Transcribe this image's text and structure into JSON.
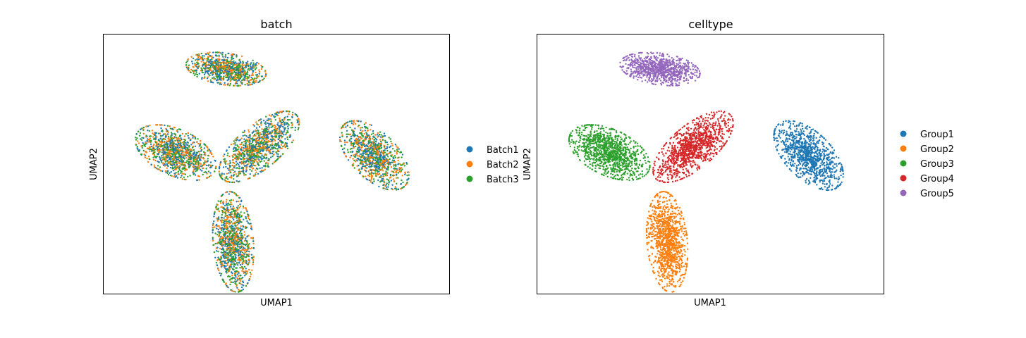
{
  "chart_data": [
    {
      "type": "scatter",
      "title": "batch",
      "xlabel": "UMAP1",
      "ylabel": "UMAP2",
      "ticks": "none",
      "legend_placement": "right",
      "series": [
        {
          "name": "Batch1",
          "color": "#1f77b4"
        },
        {
          "name": "Batch2",
          "color": "#ff7f0e"
        },
        {
          "name": "Batch3",
          "color": "#2ca02c"
        }
      ],
      "clusters": [
        {
          "center": [
            -3.5,
            9.6
          ],
          "radius": [
            2.8,
            1.1
          ],
          "rotation_deg": -8,
          "points": 900,
          "mix": [
            0.34,
            0.33,
            0.33
          ]
        },
        {
          "center": [
            -7.0,
            3.8
          ],
          "radius": [
            3.0,
            1.6
          ],
          "rotation_deg": -25,
          "points": 1100,
          "mix": [
            0.33,
            0.34,
            0.33
          ]
        },
        {
          "center": [
            -1.2,
            4.2
          ],
          "radius": [
            3.4,
            1.5
          ],
          "rotation_deg": 40,
          "points": 1100,
          "mix": [
            0.34,
            0.33,
            0.33
          ]
        },
        {
          "center": [
            6.8,
            3.6
          ],
          "radius": [
            3.0,
            1.6
          ],
          "rotation_deg": -45,
          "points": 1000,
          "mix": [
            0.34,
            0.33,
            0.33
          ]
        },
        {
          "center": [
            -3.0,
            -2.4
          ],
          "radius": [
            3.5,
            1.4
          ],
          "rotation_deg": 95,
          "points": 1100,
          "mix": [
            0.33,
            0.33,
            0.34
          ]
        }
      ],
      "xlim": [
        -12,
        12
      ],
      "ylim": [
        -6,
        12
      ]
    },
    {
      "type": "scatter",
      "title": "celltype",
      "xlabel": "UMAP1",
      "ylabel": "UMAP2",
      "ticks": "none",
      "legend_placement": "right",
      "series": [
        {
          "name": "Group1",
          "color": "#1f77b4"
        },
        {
          "name": "Group2",
          "color": "#ff7f0e"
        },
        {
          "name": "Group3",
          "color": "#2ca02c"
        },
        {
          "name": "Group4",
          "color": "#d62728"
        },
        {
          "name": "Group5",
          "color": "#9467bd"
        }
      ],
      "clusters": [
        {
          "series": 4,
          "center": [
            -3.5,
            9.6
          ],
          "radius": [
            2.8,
            1.1
          ],
          "rotation_deg": -8,
          "points": 900
        },
        {
          "series": 2,
          "center": [
            -7.0,
            3.8
          ],
          "radius": [
            3.0,
            1.6
          ],
          "rotation_deg": -25,
          "points": 1100
        },
        {
          "series": 3,
          "center": [
            -1.2,
            4.2
          ],
          "radius": [
            3.4,
            1.5
          ],
          "rotation_deg": 40,
          "points": 1100
        },
        {
          "series": 0,
          "center": [
            6.8,
            3.6
          ],
          "radius": [
            3.0,
            1.6
          ],
          "rotation_deg": -45,
          "points": 1000
        },
        {
          "series": 1,
          "center": [
            -3.0,
            -2.4
          ],
          "radius": [
            3.5,
            1.4
          ],
          "rotation_deg": 95,
          "points": 1100
        }
      ],
      "xlim": [
        -12,
        12
      ],
      "ylim": [
        -6,
        12
      ]
    }
  ]
}
